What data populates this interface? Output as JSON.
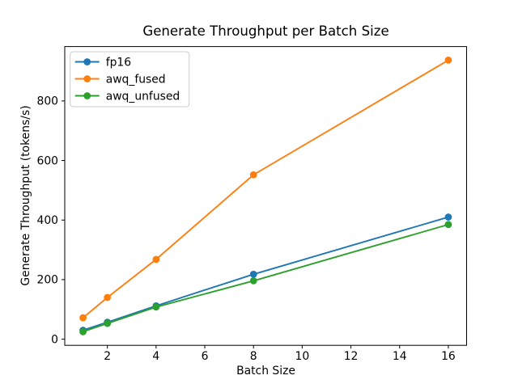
{
  "chart_data": {
    "type": "line",
    "title": "Generate Throughput per Batch Size",
    "xlabel": "Batch Size",
    "ylabel": "Generate Throughput (tokens/s)",
    "x": [
      1,
      2,
      4,
      8,
      16
    ],
    "series": [
      {
        "name": "fp16",
        "color": "#1f77b4",
        "values": [
          30,
          57,
          112,
          218,
          410
        ]
      },
      {
        "name": "awq_fused",
        "color": "#ff7f0e",
        "values": [
          72,
          140,
          268,
          552,
          937
        ]
      },
      {
        "name": "awq_unfused",
        "color": "#2ca02c",
        "values": [
          25,
          53,
          108,
          196,
          385
        ]
      }
    ],
    "xticks": [
      2,
      4,
      6,
      8,
      10,
      12,
      14,
      16
    ],
    "yticks": [
      0,
      200,
      400,
      600,
      800
    ],
    "xlim": [
      0.25,
      16.75
    ],
    "ylim": [
      -20.6,
      982.6
    ],
    "grid": false,
    "legend_position": "upper-left",
    "marker": "o",
    "background_color": "#ffffff",
    "text_color": "#000000",
    "spine_color": "#000000",
    "legend_border_color": "#cccccc"
  }
}
